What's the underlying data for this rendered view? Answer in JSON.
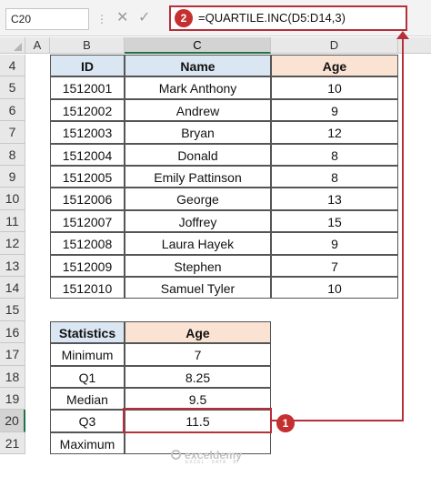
{
  "formula_bar": {
    "name_box": "C20",
    "formula": "=QUARTILE.INC(D5:D14,3)"
  },
  "badges": {
    "one": "1",
    "two": "2"
  },
  "columns": [
    "A",
    "B",
    "C",
    "D"
  ],
  "rows": [
    "4",
    "5",
    "6",
    "7",
    "8",
    "9",
    "10",
    "11",
    "12",
    "13",
    "14",
    "15",
    "16",
    "17",
    "18",
    "19",
    "20",
    "21"
  ],
  "table": {
    "headers": {
      "id": "ID",
      "name": "Name",
      "age": "Age"
    },
    "records": [
      {
        "id": "1512001",
        "name": "Mark Anthony",
        "age": "10"
      },
      {
        "id": "1512002",
        "name": "Andrew",
        "age": "9"
      },
      {
        "id": "1512003",
        "name": "Bryan",
        "age": "12"
      },
      {
        "id": "1512004",
        "name": "Donald",
        "age": "8"
      },
      {
        "id": "1512005",
        "name": "Emily Pattinson",
        "age": "8"
      },
      {
        "id": "1512006",
        "name": "George",
        "age": "13"
      },
      {
        "id": "1512007",
        "name": "Joffrey",
        "age": "15"
      },
      {
        "id": "1512008",
        "name": "Laura Hayek",
        "age": "9"
      },
      {
        "id": "1512009",
        "name": "Stephen",
        "age": "7"
      },
      {
        "id": "1512010",
        "name": "Samuel Tyler",
        "age": "10"
      }
    ]
  },
  "stats": {
    "headers": {
      "label": "Statistics",
      "value": "Age"
    },
    "rows": [
      {
        "label": "Minimum",
        "value": "7"
      },
      {
        "label": "Q1",
        "value": "8.25"
      },
      {
        "label": "Median",
        "value": "9.5"
      },
      {
        "label": "Q3",
        "value": "11.5"
      },
      {
        "label": "Maximum",
        "value": ""
      }
    ]
  },
  "watermark": {
    "brand": "exceldemy",
    "tagline": "EXCEL · DATA · BI"
  },
  "colors": {
    "accent": "#b5303b",
    "header_blue": "#dae6f2",
    "header_orange": "#fbe3d4",
    "selection": "#217346"
  }
}
